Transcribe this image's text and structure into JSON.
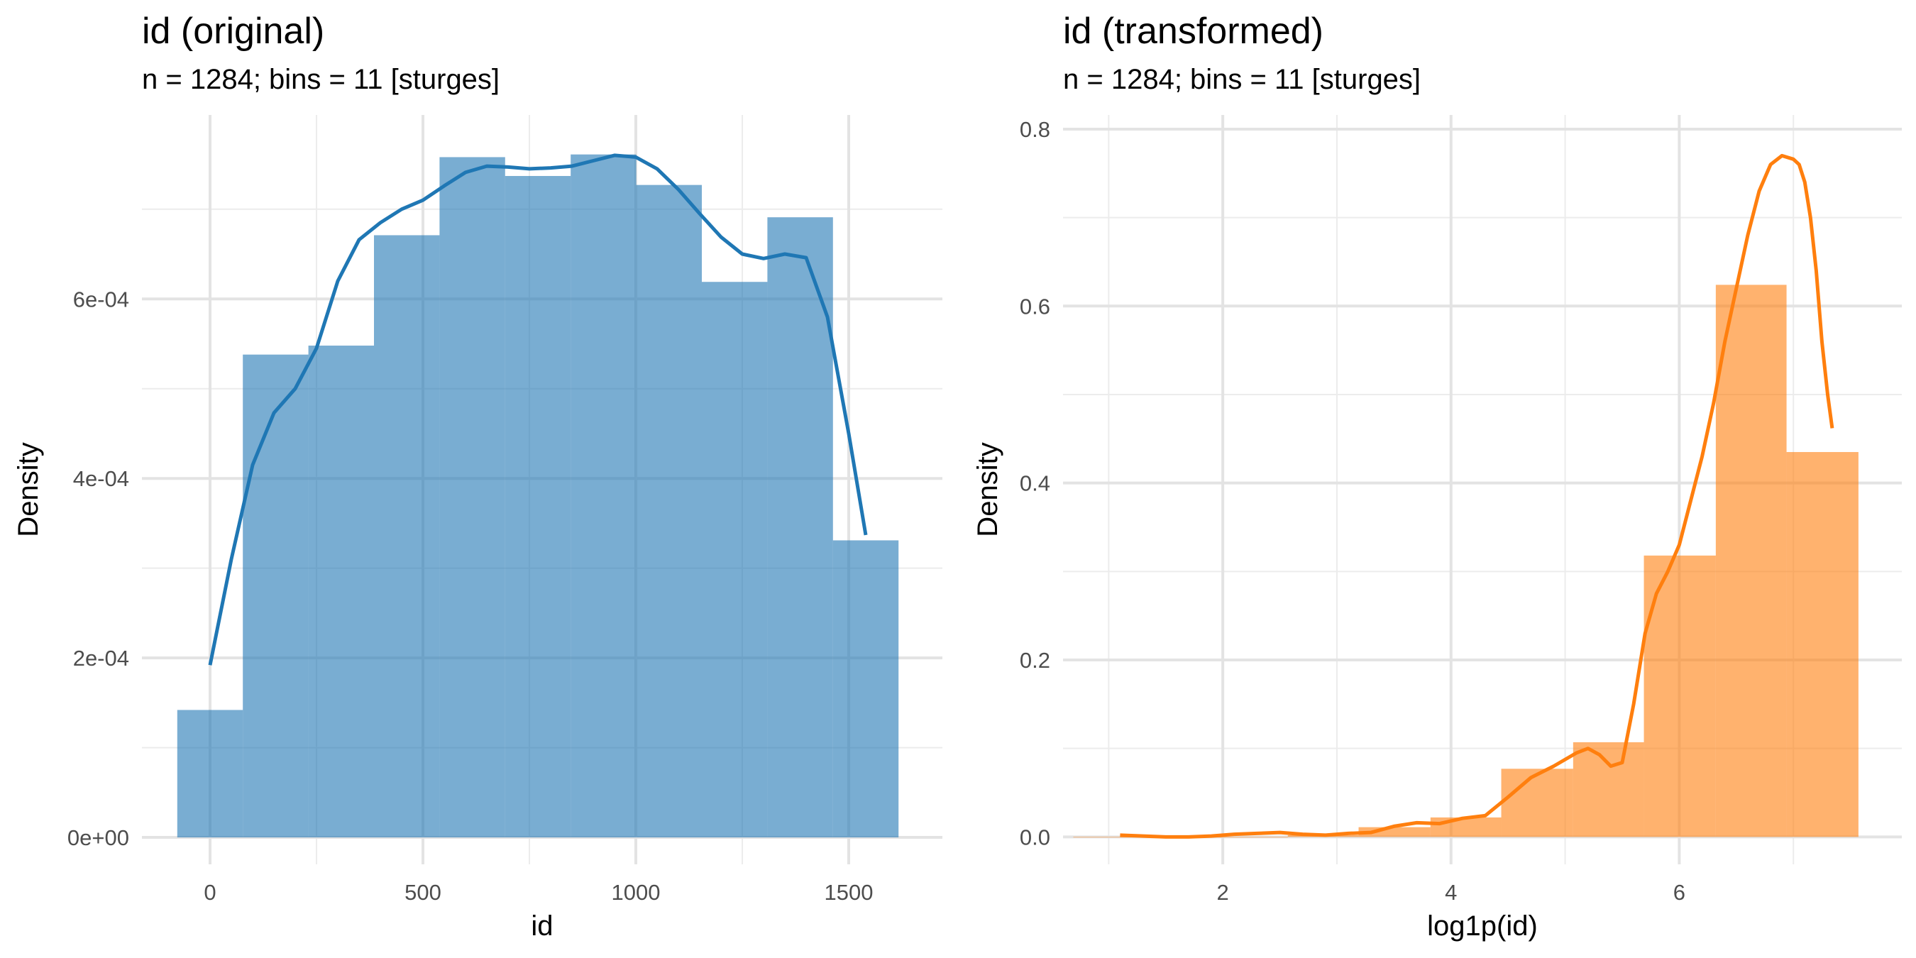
{
  "chart_data": [
    {
      "type": "bar",
      "title": "id (original)",
      "subtitle": "n = 1284; bins = 11 [sturges]",
      "xlabel": "id",
      "ylabel": "Density",
      "xlim": [
        -160,
        1720
      ],
      "ylim": [
        -3e-05,
        0.000805
      ],
      "x_ticks": [
        0,
        500,
        1000,
        1500
      ],
      "x_tick_labels": [
        "0",
        "500",
        "1000",
        "1500"
      ],
      "y_ticks": [
        0,
        0.0002,
        0.0004,
        0.0006
      ],
      "y_tick_labels": [
        "0e+00",
        "2e-04",
        "4e-04",
        "6e-04"
      ],
      "y_minor_ticks": [
        0.0001,
        0.0003,
        0.0005,
        0.0007
      ],
      "x_minor_ticks": [
        250,
        750,
        1250
      ],
      "grid": true,
      "bar_color": "#1f77b4",
      "bar_opacity": 0.6,
      "line_color": "#1f77b4",
      "bins": [
        {
          "x0": -77,
          "x1": 77,
          "value": 0.000142
        },
        {
          "x0": 77,
          "x1": 231,
          "value": 0.000538
        },
        {
          "x0": 231,
          "x1": 385,
          "value": 0.000548
        },
        {
          "x0": 385,
          "x1": 539,
          "value": 0.000671
        },
        {
          "x0": 539,
          "x1": 693,
          "value": 0.000758
        },
        {
          "x0": 693,
          "x1": 847,
          "value": 0.000737
        },
        {
          "x0": 847,
          "x1": 1001,
          "value": 0.000761
        },
        {
          "x0": 1001,
          "x1": 1155,
          "value": 0.000727
        },
        {
          "x0": 1155,
          "x1": 1309,
          "value": 0.000619
        },
        {
          "x0": 1309,
          "x1": 1463,
          "value": 0.000691
        },
        {
          "x0": 1463,
          "x1": 1617,
          "value": 0.000331
        }
      ],
      "density_curve": {
        "x": [
          0,
          50,
          100,
          150,
          200,
          250,
          300,
          350,
          400,
          450,
          500,
          550,
          600,
          650,
          700,
          750,
          800,
          850,
          900,
          950,
          1000,
          1050,
          1100,
          1150,
          1200,
          1250,
          1300,
          1350,
          1400,
          1450,
          1500,
          1540
        ],
        "y": [
          0.000192,
          0.00031,
          0.000415,
          0.000473,
          0.0005,
          0.000545,
          0.00062,
          0.000666,
          0.000685,
          0.0007,
          0.00071,
          0.000726,
          0.000741,
          0.000748,
          0.000747,
          0.000745,
          0.000746,
          0.000748,
          0.000754,
          0.00076,
          0.000758,
          0.000745,
          0.000722,
          0.000695,
          0.000669,
          0.00065,
          0.000645,
          0.00065,
          0.000646,
          0.00058,
          0.00045,
          0.000337
        ]
      }
    },
    {
      "type": "bar",
      "title": "id (transformed)",
      "subtitle": "n = 1284; bins = 11 [sturges]",
      "xlabel": "log1p(id)",
      "ylabel": "Density",
      "xlim": [
        0.6,
        7.95
      ],
      "ylim": [
        -0.031,
        0.816
      ],
      "x_ticks": [
        2,
        4,
        6
      ],
      "x_tick_labels": [
        "2",
        "4",
        "6"
      ],
      "y_ticks": [
        0,
        0.2,
        0.4,
        0.6,
        0.8
      ],
      "y_tick_labels": [
        "0.0",
        "0.2",
        "0.4",
        "0.6",
        "0.8"
      ],
      "y_minor_ticks": [
        0.1,
        0.3,
        0.5,
        0.7
      ],
      "x_minor_ticks": [
        1,
        3,
        5,
        7
      ],
      "grid": true,
      "bar_color": "#ff7f0e",
      "bar_opacity": 0.6,
      "line_color": "#ff7f0e",
      "bins": [
        {
          "x0": 0.69,
          "x1": 1.32,
          "value": 0.0
        },
        {
          "x0": 1.32,
          "x1": 1.94,
          "value": 0.0
        },
        {
          "x0": 1.94,
          "x1": 2.57,
          "value": 0.0
        },
        {
          "x0": 2.57,
          "x1": 3.19,
          "value": 0.002
        },
        {
          "x0": 3.19,
          "x1": 3.82,
          "value": 0.011
        },
        {
          "x0": 3.82,
          "x1": 4.44,
          "value": 0.022
        },
        {
          "x0": 4.44,
          "x1": 5.07,
          "value": 0.077
        },
        {
          "x0": 5.07,
          "x1": 5.69,
          "value": 0.107
        },
        {
          "x0": 5.69,
          "x1": 6.32,
          "value": 0.318
        },
        {
          "x0": 6.32,
          "x1": 6.94,
          "value": 0.624
        },
        {
          "x0": 6.94,
          "x1": 7.57,
          "value": 0.435
        }
      ],
      "density_curve": {
        "x": [
          1.1,
          1.3,
          1.5,
          1.7,
          1.9,
          2.1,
          2.3,
          2.5,
          2.7,
          2.9,
          3.1,
          3.3,
          3.5,
          3.7,
          3.9,
          4.1,
          4.3,
          4.5,
          4.7,
          4.9,
          5.1,
          5.2,
          5.3,
          5.4,
          5.5,
          5.6,
          5.7,
          5.8,
          5.9,
          6.0,
          6.1,
          6.2,
          6.3,
          6.4,
          6.5,
          6.6,
          6.7,
          6.8,
          6.9,
          7.0,
          7.05,
          7.1,
          7.15,
          7.2,
          7.25,
          7.3,
          7.34
        ],
        "y": [
          0.002,
          0.001,
          0.0,
          0.0,
          0.001,
          0.003,
          0.004,
          0.005,
          0.003,
          0.002,
          0.004,
          0.005,
          0.012,
          0.016,
          0.015,
          0.021,
          0.024,
          0.045,
          0.067,
          0.08,
          0.095,
          0.1,
          0.093,
          0.08,
          0.084,
          0.15,
          0.23,
          0.275,
          0.3,
          0.33,
          0.38,
          0.43,
          0.49,
          0.56,
          0.62,
          0.68,
          0.73,
          0.76,
          0.77,
          0.766,
          0.76,
          0.74,
          0.7,
          0.64,
          0.56,
          0.5,
          0.462
        ]
      }
    }
  ]
}
